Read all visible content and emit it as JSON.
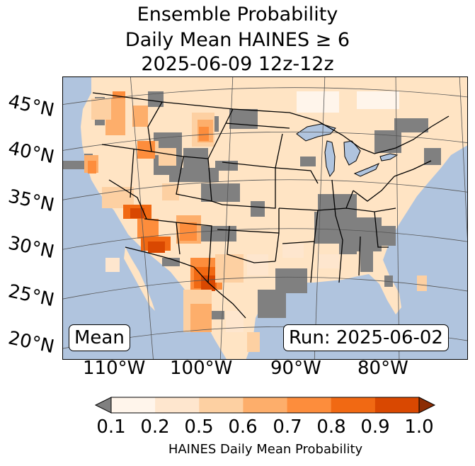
{
  "title": {
    "line1": "Ensemble Probability",
    "line2": "Daily Mean HAINES ≥ 6",
    "line3": "2025-06-09 12z-12z"
  },
  "map": {
    "lat_labels": [
      "45°N",
      "40°N",
      "35°N",
      "30°N",
      "25°N",
      "20°N"
    ],
    "lon_labels": [
      "110°W",
      "100°W",
      "90°W",
      "80°W"
    ],
    "mean_box": "Mean",
    "run_box": "Run: 2025-06-02",
    "colors": {
      "ocean": "#b0c4de",
      "land_base": "#ffe4c4",
      "gray_cells": "#808080",
      "borders": "#000000",
      "graticule": "#555555"
    }
  },
  "colorbar": {
    "label": "HAINES Daily Mean Probability",
    "ticks": [
      "0.1",
      "0.2",
      "0.5",
      "0.6",
      "0.7",
      "0.8",
      "0.9",
      "1.0"
    ],
    "under_color": "#808080",
    "colors": [
      "#fff5eb",
      "#fee6ce",
      "#fdd0a2",
      "#fdae6b",
      "#fd8d3c",
      "#f16913",
      "#d94801"
    ],
    "over_color": "#8c2d04"
  }
}
